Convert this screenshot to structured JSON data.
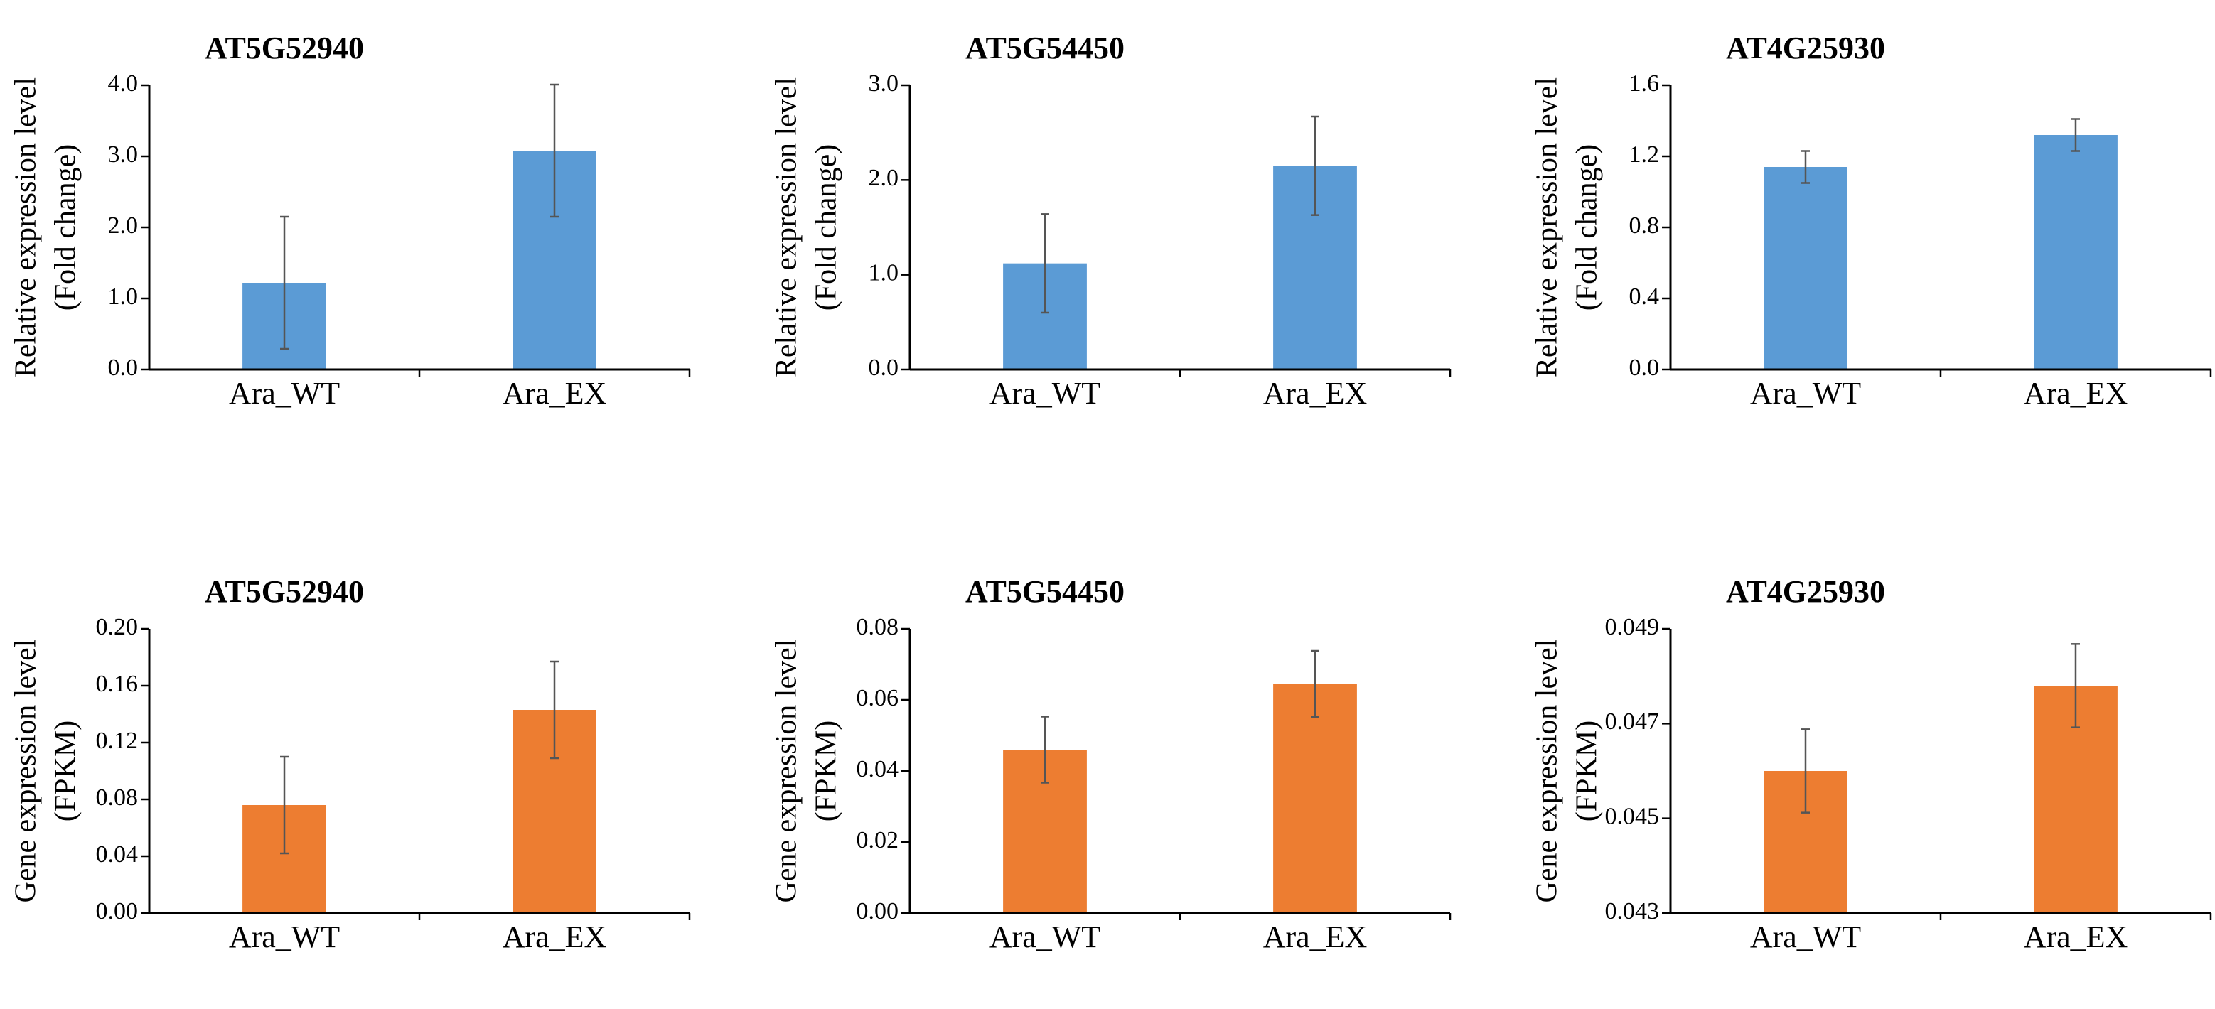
{
  "chart_data": [
    {
      "type": "bar",
      "title": "AT5G52940",
      "ylabel_lines": [
        "Relative expression level",
        "(Fold change)"
      ],
      "categories": [
        "Ara_WT",
        "Ara_EX"
      ],
      "values": [
        1.22,
        3.08
      ],
      "errors": [
        0.93,
        0.93
      ],
      "ylim": [
        0,
        4.0
      ],
      "ticks": [
        "0.0",
        "1.0",
        "2.0",
        "3.0",
        "4.0"
      ],
      "color": "#5B9BD5"
    },
    {
      "type": "bar",
      "title": "AT5G54450",
      "ylabel_lines": [
        "Relative expression level",
        "(Fold change)"
      ],
      "categories": [
        "Ara_WT",
        "Ara_EX"
      ],
      "values": [
        1.12,
        2.15
      ],
      "errors": [
        0.52,
        0.52
      ],
      "ylim": [
        0,
        3.0
      ],
      "ticks": [
        "0.0",
        "1.0",
        "2.0",
        "3.0"
      ],
      "color": "#5B9BD5"
    },
    {
      "type": "bar",
      "title": "AT4G25930",
      "ylabel_lines": [
        "Relative expression level",
        "(Fold change)"
      ],
      "categories": [
        "Ara_WT",
        "Ara_EX"
      ],
      "values": [
        1.14,
        1.32
      ],
      "errors": [
        0.09,
        0.09
      ],
      "ylim": [
        0,
        1.6
      ],
      "ticks": [
        "0.0",
        "0.4",
        "0.8",
        "1.2",
        "1.6"
      ],
      "color": "#5B9BD5"
    },
    {
      "type": "bar",
      "title": "AT5G52940",
      "ylabel_lines": [
        "Gene expression level",
        "(FPKM)"
      ],
      "categories": [
        "Ara_WT",
        "Ara_EX"
      ],
      "values": [
        0.076,
        0.143
      ],
      "errors": [
        0.034,
        0.034
      ],
      "ylim": [
        0,
        0.2
      ],
      "ticks": [
        "0.00",
        "0.04",
        "0.08",
        "0.12",
        "0.16",
        "0.20"
      ],
      "color": "#ED7D31"
    },
    {
      "type": "bar",
      "title": "AT5G54450",
      "ylabel_lines": [
        "Gene expression level",
        "(FPKM)"
      ],
      "categories": [
        "Ara_WT",
        "Ara_EX"
      ],
      "values": [
        0.046,
        0.0645
      ],
      "errors": [
        0.0093,
        0.0093
      ],
      "ylim": [
        0,
        0.08
      ],
      "ticks": [
        "0.00",
        "0.02",
        "0.04",
        "0.06",
        "0.08"
      ],
      "color": "#ED7D31"
    },
    {
      "type": "bar",
      "title": "AT4G25930",
      "ylabel_lines": [
        "Gene expression level",
        "(FPKM)"
      ],
      "categories": [
        "Ara_WT",
        "Ara_EX"
      ],
      "values": [
        0.046,
        0.0478
      ],
      "errors": [
        0.00088,
        0.00088
      ],
      "ylim": [
        0.043,
        0.049
      ],
      "ticks": [
        "0.043",
        "0.045",
        "0.047",
        "0.049"
      ],
      "color": "#ED7D31"
    }
  ]
}
